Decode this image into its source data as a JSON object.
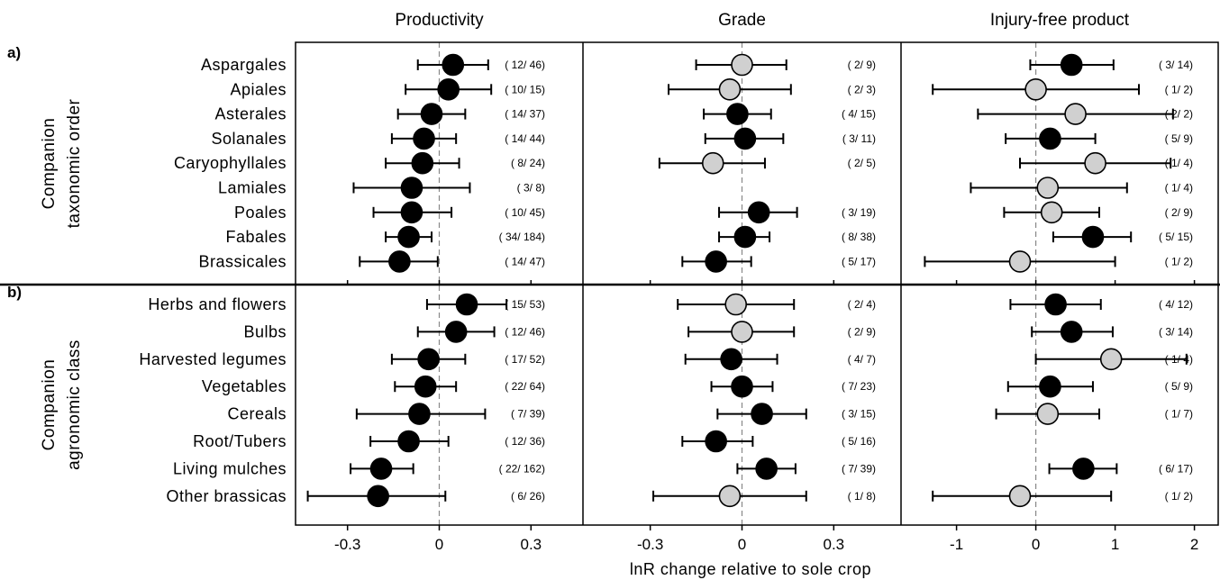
{
  "chart_data": {
    "type": "forest-plot",
    "xlabel": "lnR change relative to sole crop",
    "colors": {
      "significant": "#000000",
      "nonsignificant": "#d0d0d0",
      "outline": "#000000",
      "zero_line": "#888888"
    },
    "panels": [
      {
        "title": "Productivity",
        "xlim": [
          -0.47,
          0.47
        ],
        "ticks": [
          -0.3,
          0,
          0.3
        ],
        "tick_labels": [
          "-0.3",
          "0",
          "0.3"
        ]
      },
      {
        "title": "Grade",
        "xlim": [
          -0.52,
          0.52
        ],
        "ticks": [
          -0.3,
          0,
          0.3
        ],
        "tick_labels": [
          "-0.3",
          "0",
          "0.3"
        ]
      },
      {
        "title": "Injury-free product",
        "xlim": [
          -1.7,
          2.3
        ],
        "ticks": [
          -1,
          0,
          1,
          2
        ],
        "tick_labels": [
          "-1",
          "0",
          "1",
          "2"
        ]
      }
    ],
    "sections": [
      {
        "label": "a)",
        "group_title": [
          "Companion",
          "taxonomic order"
        ],
        "rows": [
          {
            "category": "Aspargales",
            "cells": [
              {
                "est": 0.045,
                "lo": -0.07,
                "hi": 0.16,
                "sig": true,
                "n": "( 12/ 46)"
              },
              {
                "est": 0.0,
                "lo": -0.15,
                "hi": 0.145,
                "sig": false,
                "n": "( 2/ 9)"
              },
              {
                "est": 0.45,
                "lo": -0.07,
                "hi": 0.98,
                "sig": true,
                "n": "( 3/ 14)"
              }
            ]
          },
          {
            "category": "Apiales",
            "cells": [
              {
                "est": 0.03,
                "lo": -0.11,
                "hi": 0.17,
                "sig": true,
                "n": "( 10/ 15)"
              },
              {
                "est": -0.04,
                "lo": -0.24,
                "hi": 0.16,
                "sig": false,
                "n": "( 2/ 3)"
              },
              {
                "est": 0.0,
                "lo": -1.3,
                "hi": 1.3,
                "sig": false,
                "n": "( 1/ 2)"
              }
            ]
          },
          {
            "category": "Asterales",
            "cells": [
              {
                "est": -0.025,
                "lo": -0.135,
                "hi": 0.085,
                "sig": true,
                "n": "( 14/ 37)"
              },
              {
                "est": -0.015,
                "lo": -0.125,
                "hi": 0.095,
                "sig": true,
                "n": "( 4/ 15)"
              },
              {
                "est": 0.5,
                "lo": -0.73,
                "hi": 1.73,
                "sig": false,
                "n": "( 2/ 2)"
              }
            ]
          },
          {
            "category": "Solanales",
            "cells": [
              {
                "est": -0.05,
                "lo": -0.155,
                "hi": 0.055,
                "sig": true,
                "n": "( 14/ 44)"
              },
              {
                "est": 0.01,
                "lo": -0.12,
                "hi": 0.135,
                "sig": true,
                "n": "( 3/ 11)"
              },
              {
                "est": 0.18,
                "lo": -0.38,
                "hi": 0.75,
                "sig": true,
                "n": "( 5/ 9)"
              }
            ]
          },
          {
            "category": "Caryophyllales",
            "cells": [
              {
                "est": -0.055,
                "lo": -0.175,
                "hi": 0.065,
                "sig": true,
                "n": "( 8/ 24)"
              },
              {
                "est": -0.095,
                "lo": -0.27,
                "hi": 0.075,
                "sig": false,
                "n": "( 2/ 5)"
              },
              {
                "est": 0.75,
                "lo": -0.2,
                "hi": 1.7,
                "sig": false,
                "n": "( 1/ 4)"
              }
            ]
          },
          {
            "category": "Lamiales",
            "cells": [
              {
                "est": -0.09,
                "lo": -0.28,
                "hi": 0.1,
                "sig": true,
                "n": "( 3/ 8)"
              },
              null,
              {
                "est": 0.15,
                "lo": -0.82,
                "hi": 1.15,
                "sig": false,
                "n": "( 1/ 4)"
              }
            ]
          },
          {
            "category": "Poales",
            "cells": [
              {
                "est": -0.09,
                "lo": -0.215,
                "hi": 0.04,
                "sig": true,
                "n": "( 10/ 45)"
              },
              {
                "est": 0.055,
                "lo": -0.075,
                "hi": 0.18,
                "sig": true,
                "n": "( 3/ 19)"
              },
              {
                "est": 0.2,
                "lo": -0.4,
                "hi": 0.8,
                "sig": false,
                "n": "( 2/ 9)"
              }
            ]
          },
          {
            "category": "Fabales",
            "cells": [
              {
                "est": -0.1,
                "lo": -0.175,
                "hi": -0.025,
                "sig": true,
                "n": "( 34/ 184)"
              },
              {
                "est": 0.01,
                "lo": -0.075,
                "hi": 0.09,
                "sig": true,
                "n": "( 8/ 38)"
              },
              {
                "est": 0.72,
                "lo": 0.22,
                "hi": 1.2,
                "sig": true,
                "n": "( 5/ 15)"
              }
            ]
          },
          {
            "category": "Brassicales",
            "cells": [
              {
                "est": -0.13,
                "lo": -0.26,
                "hi": -0.005,
                "sig": true,
                "n": "( 14/ 47)"
              },
              {
                "est": -0.085,
                "lo": -0.195,
                "hi": 0.03,
                "sig": true,
                "n": "( 5/ 17)"
              },
              {
                "est": -0.2,
                "lo": -1.4,
                "hi": 1.0,
                "sig": false,
                "n": "( 1/ 2)"
              }
            ]
          }
        ]
      },
      {
        "label": "b)",
        "group_title": [
          "Companion",
          "agronomic class"
        ],
        "rows": [
          {
            "category": "Herbs and flowers",
            "cells": [
              {
                "est": 0.09,
                "lo": -0.04,
                "hi": 0.22,
                "sig": true,
                "n": "( 15/ 53)"
              },
              {
                "est": -0.02,
                "lo": -0.21,
                "hi": 0.17,
                "sig": false,
                "n": "( 2/ 4)"
              },
              {
                "est": 0.25,
                "lo": -0.32,
                "hi": 0.82,
                "sig": true,
                "n": "( 4/ 12)"
              }
            ]
          },
          {
            "category": "Bulbs",
            "cells": [
              {
                "est": 0.055,
                "lo": -0.07,
                "hi": 0.18,
                "sig": true,
                "n": "( 12/ 46)"
              },
              {
                "est": 0.0,
                "lo": -0.175,
                "hi": 0.17,
                "sig": false,
                "n": "( 2/ 9)"
              },
              {
                "est": 0.45,
                "lo": -0.05,
                "hi": 0.97,
                "sig": true,
                "n": "( 3/ 14)"
              }
            ]
          },
          {
            "category": "Harvested legumes",
            "cells": [
              {
                "est": -0.035,
                "lo": -0.155,
                "hi": 0.085,
                "sig": true,
                "n": "( 17/ 52)"
              },
              {
                "est": -0.035,
                "lo": -0.185,
                "hi": 0.115,
                "sig": true,
                "n": "( 4/ 7)"
              },
              {
                "est": 0.95,
                "lo": 0.0,
                "hi": 1.9,
                "sig": false,
                "n": "( 1/ 4)"
              }
            ]
          },
          {
            "category": "Vegetables",
            "cells": [
              {
                "est": -0.045,
                "lo": -0.145,
                "hi": 0.055,
                "sig": true,
                "n": "( 22/ 64)"
              },
              {
                "est": 0.0,
                "lo": -0.1,
                "hi": 0.1,
                "sig": true,
                "n": "( 7/ 23)"
              },
              {
                "est": 0.18,
                "lo": -0.35,
                "hi": 0.72,
                "sig": true,
                "n": "( 5/ 9)"
              }
            ]
          },
          {
            "category": "Cereals",
            "cells": [
              {
                "est": -0.065,
                "lo": -0.27,
                "hi": 0.15,
                "sig": true,
                "n": "( 7/ 39)"
              },
              {
                "est": 0.065,
                "lo": -0.08,
                "hi": 0.21,
                "sig": true,
                "n": "( 3/ 15)"
              },
              {
                "est": 0.15,
                "lo": -0.5,
                "hi": 0.8,
                "sig": false,
                "n": "( 1/ 7)"
              }
            ]
          },
          {
            "category": "Root/Tubers",
            "cells": [
              {
                "est": -0.1,
                "lo": -0.225,
                "hi": 0.03,
                "sig": true,
                "n": "( 12/ 36)"
              },
              {
                "est": -0.085,
                "lo": -0.195,
                "hi": 0.035,
                "sig": true,
                "n": "( 5/ 16)"
              },
              null
            ]
          },
          {
            "category": "Living mulches",
            "cells": [
              {
                "est": -0.19,
                "lo": -0.29,
                "hi": -0.085,
                "sig": true,
                "n": "( 22/ 162)"
              },
              {
                "est": 0.08,
                "lo": -0.015,
                "hi": 0.175,
                "sig": true,
                "n": "( 7/ 39)"
              },
              {
                "est": 0.6,
                "lo": 0.17,
                "hi": 1.02,
                "sig": true,
                "n": "( 6/ 17)"
              }
            ]
          },
          {
            "category": "Other brassicas",
            "cells": [
              {
                "est": -0.2,
                "lo": -0.43,
                "hi": 0.02,
                "sig": true,
                "n": "( 6/ 26)"
              },
              {
                "est": -0.04,
                "lo": -0.29,
                "hi": 0.21,
                "sig": false,
                "n": "( 1/ 8)"
              },
              {
                "est": -0.2,
                "lo": -1.3,
                "hi": 0.95,
                "sig": false,
                "n": "( 1/ 2)"
              }
            ]
          }
        ]
      }
    ]
  }
}
